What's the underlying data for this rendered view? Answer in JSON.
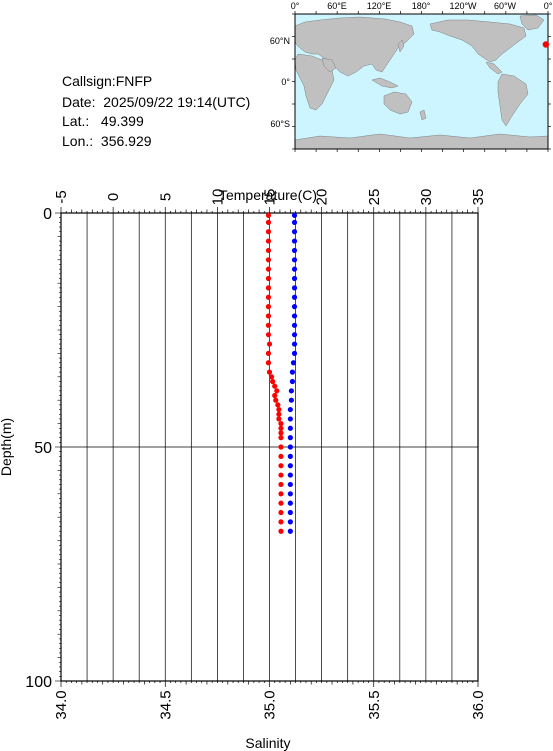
{
  "header": {
    "callsign_label": "Callsign:",
    "callsign": "FNFP",
    "date_label": "Date:",
    "date": "2025/09/22 19:14(UTC)",
    "lat_label": "Lat.:",
    "lat": "49.399",
    "lon_label": "Lon.:",
    "lon": "356.929"
  },
  "map": {
    "lon_labels": [
      "0°",
      "60°E",
      "120°E",
      "180°",
      "120°W",
      "60°W",
      "0°"
    ],
    "lat_labels": [
      "60°N",
      "0°",
      "60°S"
    ],
    "ocean_color": "#ccf5ff",
    "land_color": "#c0c0c0",
    "marker_color": "#ff0000",
    "station": {
      "lat": 49.399,
      "lon": 356.929
    }
  },
  "chart_data": {
    "type": "scatter",
    "xlabel_top": "Temperature(C)",
    "xlabel_bottom": "Salinity",
    "ylabel": "Depth(m)",
    "temperature_axis": {
      "range": [
        -5,
        35
      ],
      "ticks": [
        -5,
        0,
        5,
        10,
        15,
        20,
        25,
        30,
        35
      ]
    },
    "salinity_axis": {
      "range": [
        34.0,
        36.0
      ],
      "ticks": [
        "34.0",
        "34.5",
        "35.0",
        "35.5",
        "36.0"
      ]
    },
    "depth_axis": {
      "range": [
        0,
        100
      ],
      "ticks": [
        0,
        50,
        100
      ],
      "inverted": true
    },
    "series": [
      {
        "variable": "temperature",
        "color": "#ff0000",
        "points": [
          [
            14.9,
            0.5
          ],
          [
            14.9,
            2
          ],
          [
            14.9,
            4
          ],
          [
            14.9,
            6
          ],
          [
            14.9,
            8
          ],
          [
            14.9,
            10
          ],
          [
            14.9,
            12
          ],
          [
            14.9,
            14
          ],
          [
            14.9,
            16
          ],
          [
            14.9,
            18
          ],
          [
            14.9,
            20
          ],
          [
            14.9,
            22
          ],
          [
            14.9,
            24
          ],
          [
            14.9,
            26
          ],
          [
            15.0,
            28
          ],
          [
            14.9,
            30
          ],
          [
            14.9,
            32
          ],
          [
            15.0,
            34
          ],
          [
            15.2,
            35
          ],
          [
            15.3,
            36
          ],
          [
            15.5,
            37
          ],
          [
            15.7,
            38
          ],
          [
            15.5,
            39
          ],
          [
            15.6,
            40
          ],
          [
            15.8,
            41
          ],
          [
            15.9,
            42
          ],
          [
            15.9,
            43
          ],
          [
            15.9,
            44
          ],
          [
            16.1,
            45
          ],
          [
            16.1,
            46
          ],
          [
            16.1,
            47
          ],
          [
            16.1,
            48
          ],
          [
            16.1,
            50
          ],
          [
            16.1,
            52
          ],
          [
            16.1,
            54
          ],
          [
            16.1,
            56
          ],
          [
            16.1,
            58
          ],
          [
            16.1,
            60
          ],
          [
            16.1,
            62
          ],
          [
            16.1,
            64
          ],
          [
            16.1,
            66
          ],
          [
            16.1,
            68
          ]
        ]
      },
      {
        "variable": "salinity",
        "color": "#0000ff",
        "points": [
          [
            35.12,
            0.5
          ],
          [
            35.12,
            2
          ],
          [
            35.12,
            4
          ],
          [
            35.12,
            6
          ],
          [
            35.12,
            8
          ],
          [
            35.12,
            10
          ],
          [
            35.12,
            12
          ],
          [
            35.12,
            14
          ],
          [
            35.12,
            16
          ],
          [
            35.12,
            18
          ],
          [
            35.12,
            20
          ],
          [
            35.12,
            22
          ],
          [
            35.12,
            24
          ],
          [
            35.12,
            26
          ],
          [
            35.12,
            28
          ],
          [
            35.12,
            30
          ],
          [
            35.115,
            32
          ],
          [
            35.11,
            34
          ],
          [
            35.11,
            36
          ],
          [
            35.105,
            38
          ],
          [
            35.105,
            40
          ],
          [
            35.1,
            42
          ],
          [
            35.1,
            44
          ],
          [
            35.1,
            46
          ],
          [
            35.1,
            48
          ],
          [
            35.1,
            50
          ],
          [
            35.1,
            52
          ],
          [
            35.1,
            54
          ],
          [
            35.1,
            56
          ],
          [
            35.1,
            58
          ],
          [
            35.1,
            60
          ],
          [
            35.1,
            62
          ],
          [
            35.1,
            64
          ],
          [
            35.1,
            66
          ],
          [
            35.1,
            68
          ]
        ]
      }
    ]
  }
}
